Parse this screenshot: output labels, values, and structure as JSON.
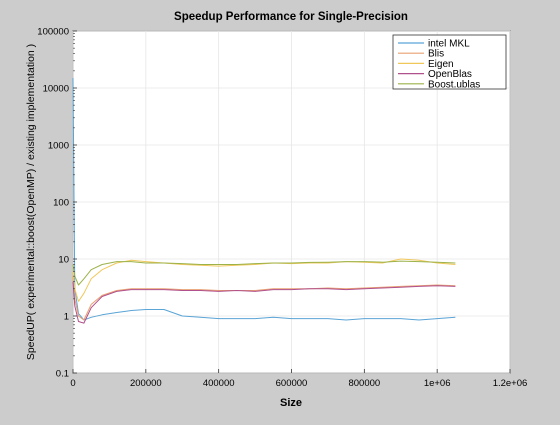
{
  "chart_data": {
    "type": "line",
    "title": "Speedup Performance for Single-Precision",
    "xlabel": "Size",
    "ylabel": "SpeedUP( experimental::boost(OpenMP) / existing implementation )",
    "xlim": [
      0,
      1200000
    ],
    "ylim": [
      0.1,
      100000
    ],
    "yscale": "log",
    "grid": true,
    "legend_position": "top-right",
    "x_ticks": [
      0,
      200000,
      400000,
      600000,
      800000,
      1000000,
      1200000
    ],
    "x_tick_labels": [
      "0",
      "200000",
      "400000",
      "600000",
      "800000",
      "1e+06",
      "1.2e+06"
    ],
    "y_ticks": [
      0.1,
      1,
      10,
      100,
      1000,
      10000,
      100000
    ],
    "y_tick_labels": [
      "0.1",
      "1",
      "10",
      "100",
      "1000",
      "10000",
      "100000"
    ],
    "series": [
      {
        "name": "intel MKL",
        "color": "#5aa4d6",
        "x": [
          0,
          5000,
          15000,
          30000,
          50000,
          80000,
          120000,
          160000,
          200000,
          250000,
          300000,
          350000,
          400000,
          450000,
          500000,
          550000,
          600000,
          650000,
          700000,
          750000,
          800000,
          850000,
          900000,
          950000,
          1000000,
          1050000
        ],
        "y": [
          15000,
          3,
          1.1,
          0.85,
          0.95,
          1.05,
          1.15,
          1.25,
          1.3,
          1.3,
          1.0,
          0.95,
          0.9,
          0.9,
          0.9,
          0.95,
          0.9,
          0.9,
          0.9,
          0.85,
          0.9,
          0.9,
          0.9,
          0.85,
          0.9,
          0.95
        ]
      },
      {
        "name": "Blis",
        "color": "#e8a070",
        "x": [
          0,
          5000,
          15000,
          30000,
          50000,
          80000,
          120000,
          160000,
          200000,
          250000,
          300000,
          350000,
          400000,
          450000,
          500000,
          550000,
          600000,
          650000,
          700000,
          750000,
          800000,
          850000,
          900000,
          950000,
          1000000,
          1050000
        ],
        "y": [
          5,
          2,
          1.0,
          0.85,
          1.6,
          2.3,
          2.8,
          3.0,
          3.0,
          3.0,
          2.9,
          2.9,
          2.8,
          2.8,
          2.8,
          3.0,
          3.0,
          3.0,
          3.1,
          3.0,
          3.1,
          3.2,
          3.3,
          3.4,
          3.5,
          3.4
        ]
      },
      {
        "name": "Eigen",
        "color": "#f0c85a",
        "x": [
          0,
          5000,
          15000,
          30000,
          50000,
          80000,
          120000,
          160000,
          200000,
          250000,
          300000,
          350000,
          400000,
          450000,
          500000,
          550000,
          600000,
          650000,
          700000,
          750000,
          800000,
          850000,
          900000,
          950000,
          1000000,
          1050000
        ],
        "y": [
          6,
          3,
          1.8,
          2.5,
          4.5,
          6.5,
          8.5,
          9.5,
          9.0,
          8.5,
          8.0,
          7.8,
          7.5,
          7.8,
          8.0,
          8.5,
          8.3,
          8.5,
          8.5,
          9.0,
          8.8,
          8.5,
          10.0,
          9.5,
          8.5,
          8.0
        ]
      },
      {
        "name": "OpenBlas",
        "color": "#b0508c",
        "x": [
          0,
          5000,
          15000,
          30000,
          50000,
          80000,
          120000,
          160000,
          200000,
          250000,
          300000,
          350000,
          400000,
          450000,
          500000,
          550000,
          600000,
          650000,
          700000,
          750000,
          800000,
          850000,
          900000,
          950000,
          1000000,
          1050000
        ],
        "y": [
          4,
          1.5,
          0.8,
          0.75,
          1.4,
          2.2,
          2.7,
          2.9,
          2.9,
          2.9,
          2.8,
          2.8,
          2.7,
          2.8,
          2.7,
          2.9,
          2.9,
          3.0,
          3.0,
          2.9,
          3.0,
          3.1,
          3.2,
          3.3,
          3.4,
          3.3
        ]
      },
      {
        "name": "Boost.ublas",
        "color": "#9cb24a",
        "x": [
          0,
          5000,
          15000,
          30000,
          50000,
          80000,
          120000,
          160000,
          200000,
          250000,
          300000,
          350000,
          400000,
          450000,
          500000,
          550000,
          600000,
          650000,
          700000,
          750000,
          800000,
          850000,
          900000,
          950000,
          1000000,
          1050000
        ],
        "y": [
          8,
          5,
          3.5,
          4.5,
          6.5,
          8.0,
          9.0,
          9.0,
          8.5,
          8.5,
          8.3,
          8.0,
          8.0,
          8.0,
          8.3,
          8.5,
          8.5,
          8.7,
          8.8,
          9.0,
          9.0,
          8.8,
          9.2,
          9.0,
          8.8,
          8.5
        ]
      }
    ]
  }
}
